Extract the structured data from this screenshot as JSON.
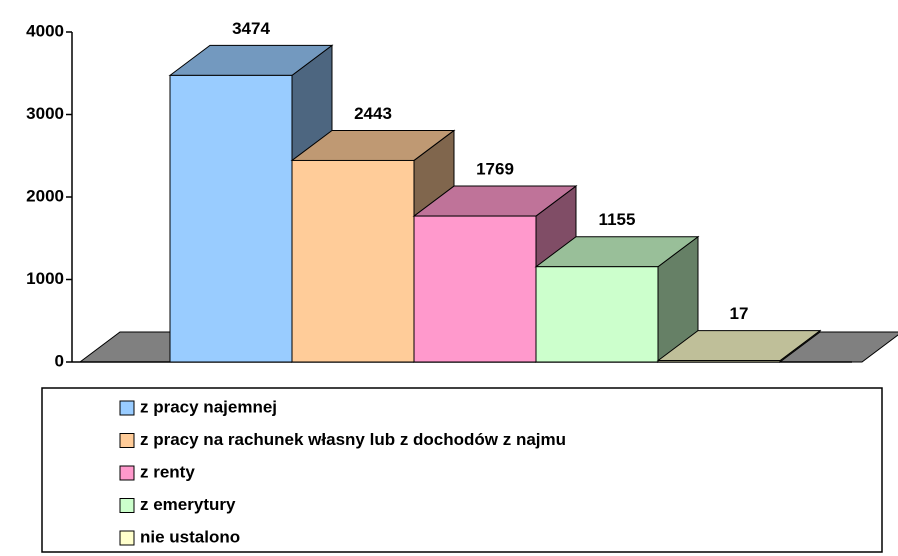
{
  "chart_data": {
    "type": "bar3d",
    "series": [
      {
        "name": "z pracy najemnej",
        "color": "#99ccff",
        "values": [
          3474
        ]
      },
      {
        "name": "z pracy na rachunek własny lub z dochodów z najmu",
        "color": "#ffcc99",
        "values": [
          2443
        ]
      },
      {
        "name": "z renty",
        "color": "#ff99cc",
        "values": [
          1769
        ]
      },
      {
        "name": "z emerytury",
        "color": "#ccffcc",
        "values": [
          1155
        ]
      },
      {
        "name": "nie ustalono",
        "color": "#ffffcc",
        "values": [
          17
        ]
      }
    ],
    "ylim": [
      0,
      4000
    ],
    "yticks": [
      0,
      1000,
      2000,
      3000,
      4000
    ],
    "floor_color": "#808080",
    "legend": "bottom"
  }
}
